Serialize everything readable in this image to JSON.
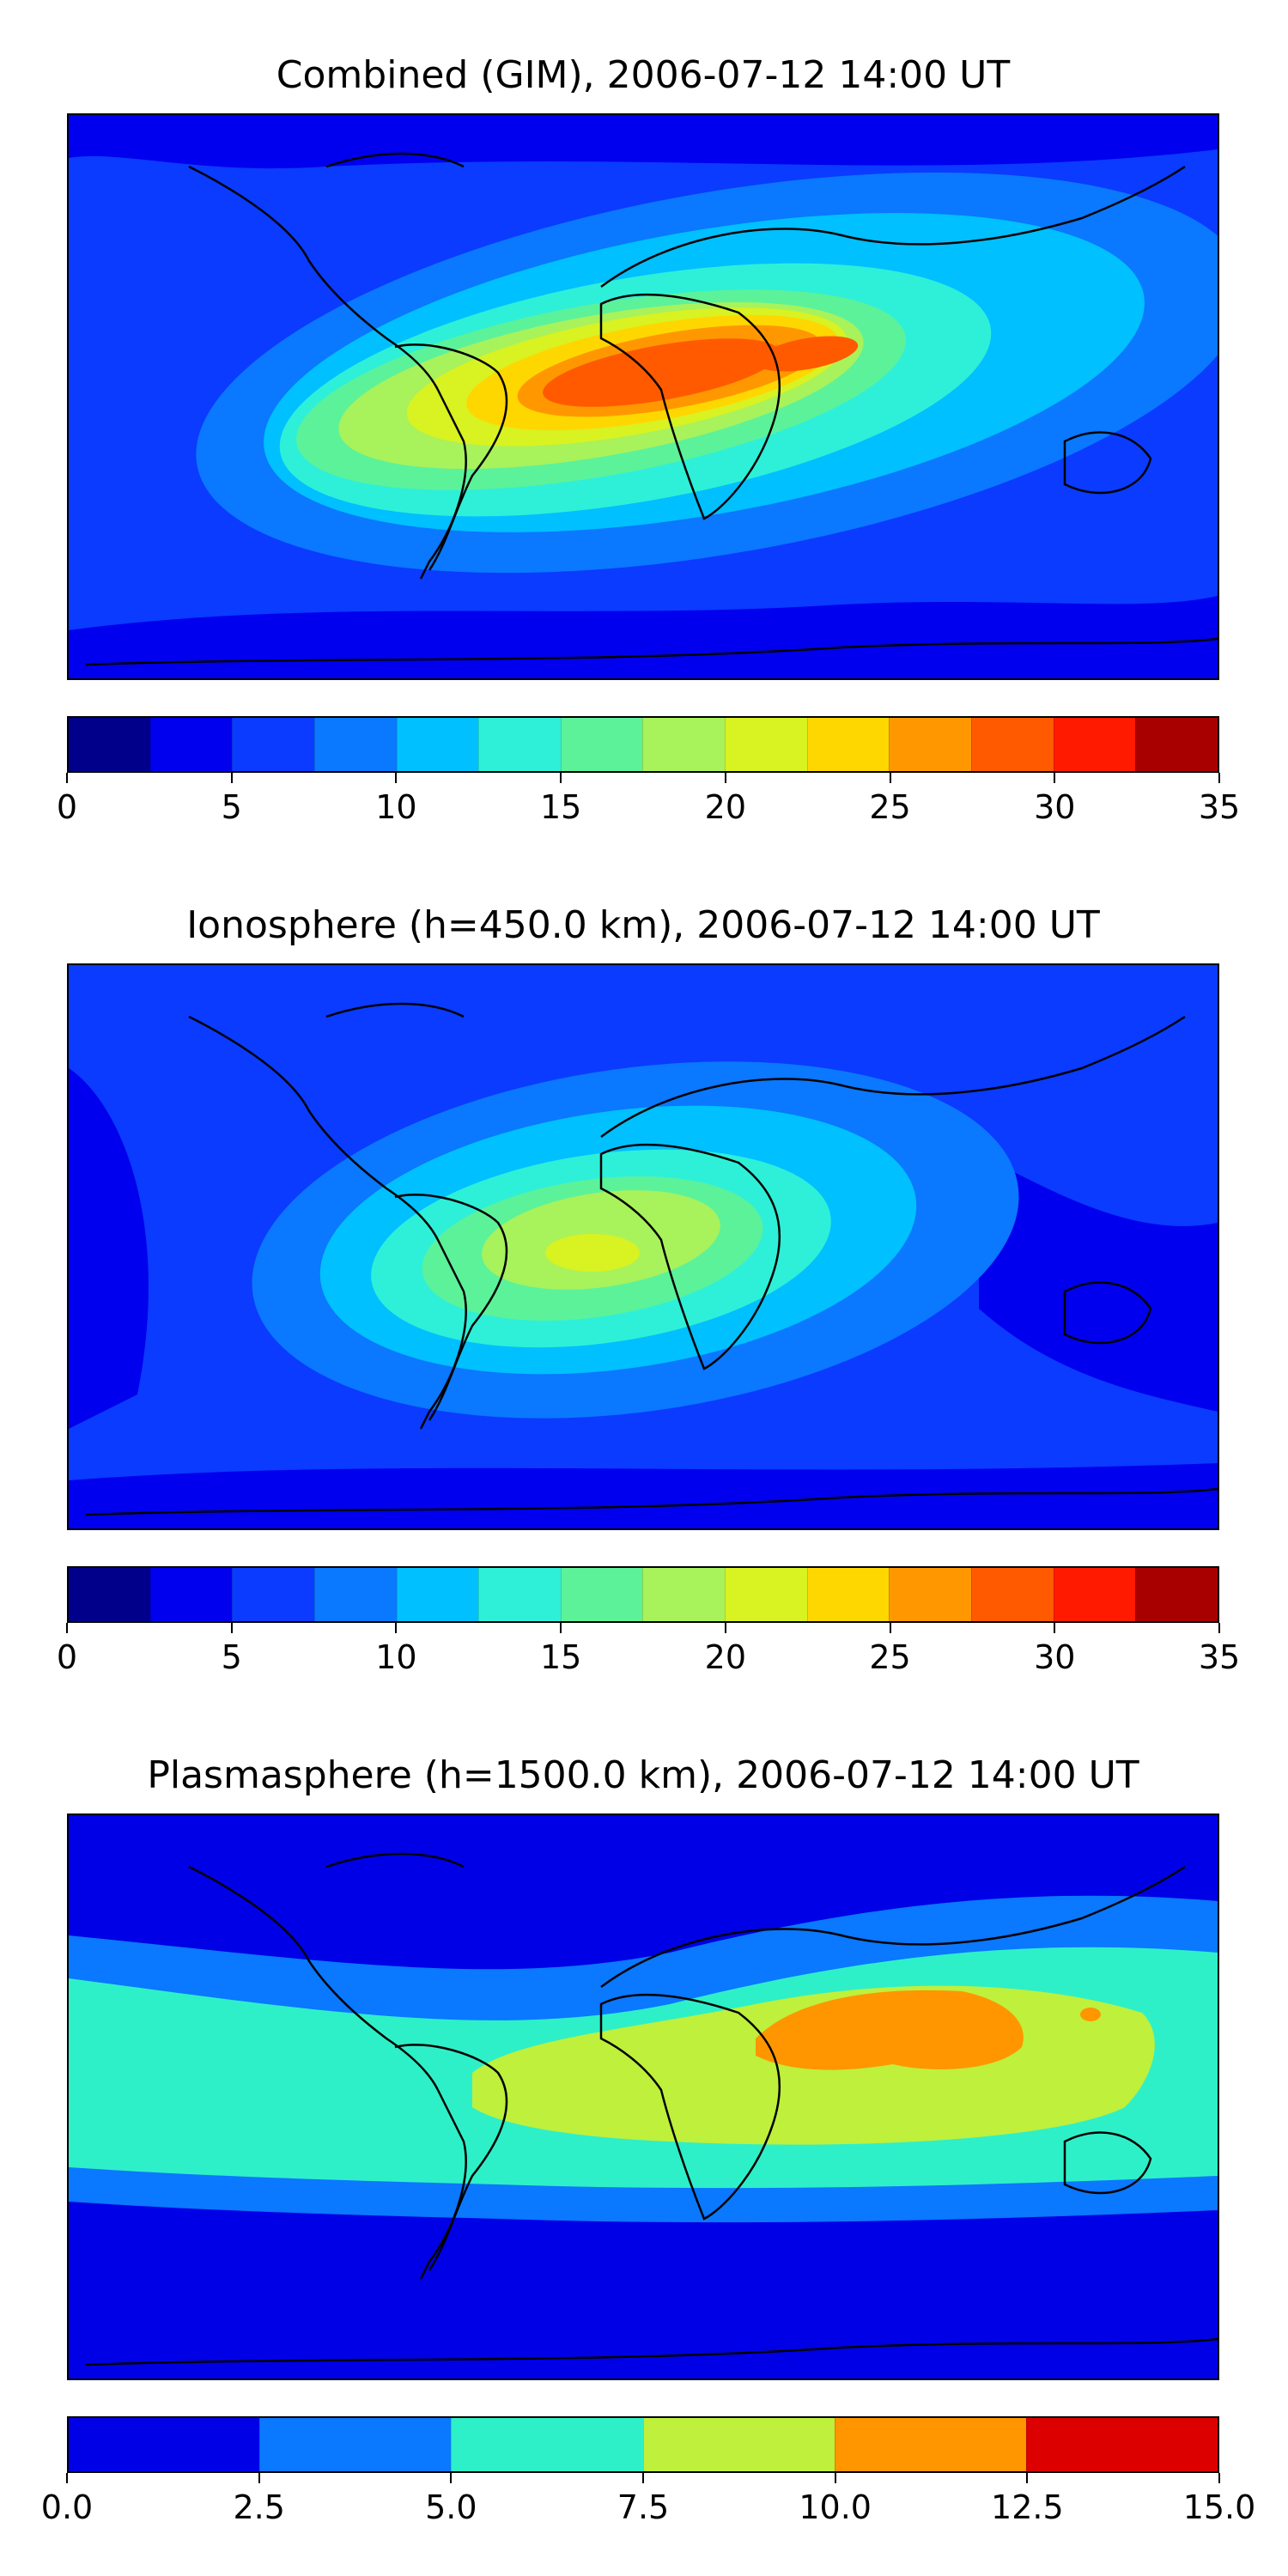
{
  "panels": [
    {
      "title": "Combined (GIM), 2006-07-12 14:00 UT",
      "colorbar": {
        "min": 0,
        "max": 35,
        "step": 2.5,
        "ticks": [
          "0",
          "5",
          "10",
          "15",
          "20",
          "25",
          "30",
          "35"
        ],
        "tick_values": [
          0,
          5,
          10,
          15,
          20,
          25,
          30,
          35
        ],
        "colors": [
          "#00008b",
          "#0000ee",
          "#0a3bff",
          "#0a78ff",
          "#00c0ff",
          "#2ef0d8",
          "#5cf29a",
          "#a8f25c",
          "#d8f222",
          "#ffd700",
          "#ff9800",
          "#ff5a00",
          "#ff1a00",
          "#a80000"
        ]
      }
    },
    {
      "title": "Ionosphere  (h=450.0 km), 2006-07-12 14:00 UT",
      "colorbar": {
        "min": 0,
        "max": 35,
        "step": 2.5,
        "ticks": [
          "0",
          "5",
          "10",
          "15",
          "20",
          "25",
          "30",
          "35"
        ],
        "tick_values": [
          0,
          5,
          10,
          15,
          20,
          25,
          30,
          35
        ],
        "colors": [
          "#00008b",
          "#0000ee",
          "#0a3bff",
          "#0a78ff",
          "#00c0ff",
          "#2ef0d8",
          "#5cf29a",
          "#a8f25c",
          "#d8f222",
          "#ffd700",
          "#ff9800",
          "#ff5a00",
          "#ff1a00",
          "#a80000"
        ]
      }
    },
    {
      "title": "Plasmasphere (h=1500.0 km), 2006-07-12 14:00 UT",
      "colorbar": {
        "min": 0,
        "max": 15,
        "step": 2.5,
        "ticks": [
          "0.0",
          "2.5",
          "5.0",
          "7.5",
          "10.0",
          "12.5",
          "15.0"
        ],
        "tick_values": [
          0,
          2.5,
          5,
          7.5,
          10,
          12.5,
          15
        ],
        "colors": [
          "#0000e6",
          "#0a78ff",
          "#2ef0c8",
          "#bef03c",
          "#ff9600",
          "#dc0000"
        ]
      }
    }
  ],
  "chart_data": [
    {
      "type": "heatmap",
      "title": "Combined (GIM), 2006-07-12 14:00 UT",
      "colorbar_range": [
        0,
        35
      ],
      "colorbar_ticks": [
        0,
        5,
        10,
        15,
        20,
        25,
        30,
        35
      ],
      "levels": [
        0,
        2.5,
        5,
        7.5,
        10,
        12.5,
        15,
        17.5,
        20,
        22.5,
        25,
        27.5,
        30,
        32.5,
        35
      ]
    },
    {
      "type": "heatmap",
      "title": "Ionosphere  (h=450.0 km), 2006-07-12 14:00 UT",
      "colorbar_range": [
        0,
        35
      ],
      "colorbar_ticks": [
        0,
        5,
        10,
        15,
        20,
        25,
        30,
        35
      ],
      "levels": [
        0,
        2.5,
        5,
        7.5,
        10,
        12.5,
        15,
        17.5,
        20,
        22.5,
        25,
        27.5,
        30,
        32.5,
        35
      ]
    },
    {
      "type": "heatmap",
      "title": "Plasmasphere (h=1500.0 km), 2006-07-12 14:00 UT",
      "colorbar_range": [
        0,
        15
      ],
      "colorbar_ticks": [
        0,
        2.5,
        5,
        7.5,
        10,
        12.5,
        15
      ],
      "levels": [
        0,
        2.5,
        5,
        7.5,
        10,
        12.5,
        15
      ]
    }
  ]
}
